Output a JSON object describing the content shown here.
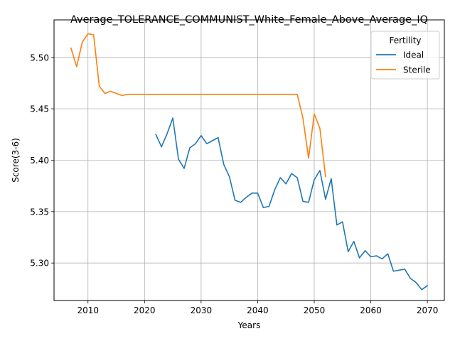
{
  "chart_data": {
    "type": "line",
    "title": "Average_TOLERANCE_COMMUNIST_White_Female_Above_Average_IQ",
    "xlabel": "Years",
    "ylabel": "Score(3-6)",
    "xlim": [
      2004,
      2073
    ],
    "ylim": [
      5.2635,
      5.5365
    ],
    "xticks": [
      2010,
      2020,
      2030,
      2040,
      2050,
      2060,
      2070
    ],
    "yticks": [
      5.3,
      5.35,
      5.4,
      5.45,
      5.5
    ],
    "ytick_labels": [
      "5.30",
      "5.35",
      "5.40",
      "5.45",
      "5.50"
    ],
    "grid": true,
    "legend": {
      "title": "Fertility",
      "position": "top-right"
    },
    "colors": {
      "Ideal": "#1f77b4",
      "Sterile": "#ff7f0e"
    },
    "series": [
      {
        "name": "Ideal",
        "x": [
          2022,
          2023,
          2024,
          2025,
          2026,
          2027,
          2028,
          2029,
          2030,
          2031,
          2032,
          2033,
          2034,
          2035,
          2036,
          2037,
          2038,
          2039,
          2040,
          2041,
          2042,
          2043,
          2044,
          2045,
          2046,
          2047,
          2048,
          2049,
          2050,
          2051,
          2052,
          2053,
          2054,
          2055,
          2056,
          2057,
          2058,
          2059,
          2060,
          2061,
          2062,
          2063,
          2064,
          2065,
          2066,
          2067,
          2068,
          2069,
          2070
        ],
        "y": [
          5.425,
          5.413,
          5.426,
          5.441,
          5.401,
          5.392,
          5.412,
          5.416,
          5.424,
          5.416,
          5.419,
          5.422,
          5.396,
          5.384,
          5.361,
          5.359,
          5.364,
          5.368,
          5.368,
          5.354,
          5.355,
          5.371,
          5.383,
          5.377,
          5.387,
          5.383,
          5.36,
          5.359,
          5.381,
          5.39,
          5.362,
          5.382,
          5.337,
          5.34,
          5.311,
          5.321,
          5.305,
          5.312,
          5.306,
          5.307,
          5.304,
          5.309,
          5.292,
          5.293,
          5.294,
          5.285,
          5.281,
          5.274,
          5.278
        ]
      },
      {
        "name": "Sterile",
        "x": [
          2007,
          2008,
          2009,
          2010,
          2011,
          2012,
          2013,
          2014,
          2015,
          2016,
          2017,
          2018,
          2019,
          2020,
          2021,
          2022,
          2023,
          2024,
          2025,
          2026,
          2027,
          2028,
          2029,
          2030,
          2031,
          2032,
          2033,
          2034,
          2035,
          2036,
          2037,
          2038,
          2039,
          2040,
          2041,
          2042,
          2043,
          2044,
          2045,
          2046,
          2047,
          2048,
          2049,
          2050,
          2051,
          2052
        ],
        "y": [
          5.509,
          5.491,
          5.515,
          5.523,
          5.522,
          5.472,
          5.465,
          5.467,
          5.465,
          5.463,
          5.464,
          5.464,
          5.464,
          5.464,
          5.464,
          5.464,
          5.464,
          5.464,
          5.464,
          5.464,
          5.464,
          5.464,
          5.464,
          5.464,
          5.464,
          5.464,
          5.464,
          5.464,
          5.464,
          5.464,
          5.464,
          5.464,
          5.464,
          5.464,
          5.464,
          5.464,
          5.464,
          5.464,
          5.464,
          5.464,
          5.464,
          5.441,
          5.402,
          5.445,
          5.431,
          5.384
        ]
      }
    ]
  }
}
